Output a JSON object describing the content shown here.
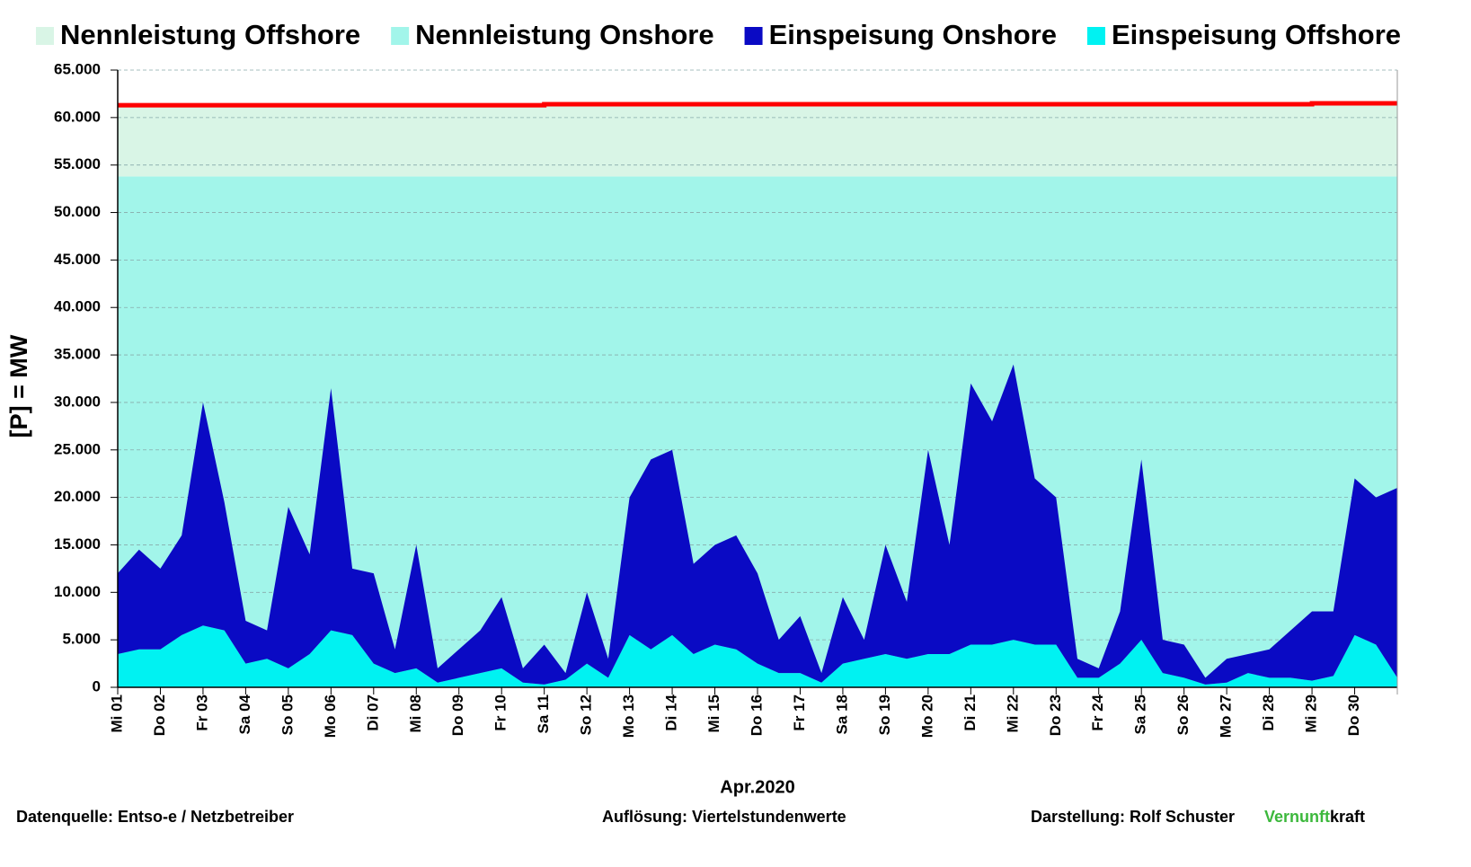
{
  "chart_data": {
    "type": "area",
    "y_label": "[P] = MW",
    "x_label": "Apr.2020",
    "xlim": [
      0,
      30
    ],
    "xticks": [
      {
        "value": 0,
        "label": "Mi 01"
      },
      {
        "value": 1,
        "label": "Do 02"
      },
      {
        "value": 2,
        "label": "Fr 03"
      },
      {
        "value": 3,
        "label": "Sa 04"
      },
      {
        "value": 4,
        "label": "So 05"
      },
      {
        "value": 5,
        "label": "Mo 06"
      },
      {
        "value": 6,
        "label": "Di 07"
      },
      {
        "value": 7,
        "label": "Mi 08"
      },
      {
        "value": 8,
        "label": "Do 09"
      },
      {
        "value": 9,
        "label": "Fr 10"
      },
      {
        "value": 10,
        "label": "Sa 11"
      },
      {
        "value": 11,
        "label": "So 12"
      },
      {
        "value": 12,
        "label": "Mo 13"
      },
      {
        "value": 13,
        "label": "Di 14"
      },
      {
        "value": 14,
        "label": "Mi 15"
      },
      {
        "value": 15,
        "label": "Do 16"
      },
      {
        "value": 16,
        "label": "Fr 17"
      },
      {
        "value": 17,
        "label": "Sa 18"
      },
      {
        "value": 18,
        "label": "So 19"
      },
      {
        "value": 19,
        "label": "Mo 20"
      },
      {
        "value": 20,
        "label": "Di 21"
      },
      {
        "value": 21,
        "label": "Mi 22"
      },
      {
        "value": 22,
        "label": "Do 23"
      },
      {
        "value": 23,
        "label": "Fr 24"
      },
      {
        "value": 24,
        "label": "Sa 25"
      },
      {
        "value": 25,
        "label": "So 26"
      },
      {
        "value": 26,
        "label": "Mo 27"
      },
      {
        "value": 27,
        "label": "Di 28"
      },
      {
        "value": 28,
        "label": "Mi 29"
      },
      {
        "value": 29,
        "label": "Do 30"
      }
    ],
    "ylim": [
      0,
      65000
    ],
    "yticks": [
      {
        "value": 0,
        "label": "0"
      },
      {
        "value": 5000,
        "label": "5.000"
      },
      {
        "value": 10000,
        "label": "10.000"
      },
      {
        "value": 15000,
        "label": "15.000"
      },
      {
        "value": 20000,
        "label": "20.000"
      },
      {
        "value": 25000,
        "label": "25.000"
      },
      {
        "value": 30000,
        "label": "30.000"
      },
      {
        "value": 35000,
        "label": "35.000"
      },
      {
        "value": 40000,
        "label": "40.000"
      },
      {
        "value": 45000,
        "label": "45.000"
      },
      {
        "value": 50000,
        "label": "50.000"
      },
      {
        "value": 55000,
        "label": "55.000"
      },
      {
        "value": 60000,
        "label": "60.000"
      },
      {
        "value": 65000,
        "label": "65.000"
      }
    ],
    "grid": true,
    "legend": "top",
    "x": [
      0,
      0.5,
      1,
      1.5,
      2,
      2.5,
      3,
      3.5,
      4,
      4.5,
      5,
      5.5,
      6,
      6.5,
      7,
      7.5,
      8,
      8.5,
      9,
      9.5,
      10,
      10.5,
      11,
      11.5,
      12,
      12.5,
      13,
      13.5,
      14,
      14.5,
      15,
      15.5,
      16,
      16.5,
      17,
      17.5,
      18,
      18.5,
      19,
      19.5,
      20,
      20.5,
      21,
      21.5,
      22,
      22.5,
      23,
      23.5,
      24,
      24.5,
      25,
      25.5,
      26,
      26.5,
      27,
      27.5,
      28,
      28.5,
      29,
      29.5,
      30
    ],
    "series": [
      {
        "name": "Nennleistung Offshore",
        "color": "#d9f5e6",
        "line_color": "#ff0000",
        "stack": "capacity",
        "x": [
          0,
          10,
          10,
          28,
          28,
          30
        ],
        "values": [
          7500,
          7500,
          7600,
          7600,
          7700,
          7700
        ]
      },
      {
        "name": "Nennleistung Onshore",
        "color": "#a2f5ea",
        "stack": "capacity",
        "x": [
          0,
          10,
          10,
          28,
          28,
          30
        ],
        "values": [
          53800,
          53800,
          53800,
          53800,
          53800,
          53800
        ]
      },
      {
        "name": "Einspeisung Onshore",
        "color": "#0a0ac4",
        "stack": "feed",
        "values": [
          8500,
          10500,
          8500,
          10500,
          23500,
          13500,
          4500,
          3000,
          17000,
          10500,
          25500,
          7000,
          9500,
          2500,
          13000,
          1500,
          3000,
          4500,
          7500,
          1500,
          4200,
          700,
          7500,
          2000,
          14500,
          20000,
          19500,
          9500,
          10500,
          12000,
          9500,
          3500,
          6000,
          1000,
          7000,
          2000,
          11500,
          6000,
          21500,
          11500,
          27500,
          23500,
          29000,
          17500,
          15500,
          2000,
          1000,
          5500,
          19000,
          3500,
          3500,
          700,
          2500,
          2000,
          3000,
          5000,
          7300,
          6800,
          16500,
          15500,
          20000
        ]
      },
      {
        "name": "Einspeisung Offshore",
        "color": "#00f2f2",
        "stack": "feed",
        "values": [
          3500,
          4000,
          4000,
          5500,
          6500,
          6000,
          2500,
          3000,
          2000,
          3500,
          6000,
          5500,
          2500,
          1500,
          2000,
          500,
          1000,
          1500,
          2000,
          500,
          300,
          800,
          2500,
          1000,
          5500,
          4000,
          5500,
          3500,
          4500,
          4000,
          2500,
          1500,
          1500,
          500,
          2500,
          3000,
          3500,
          3000,
          3500,
          3500,
          4500,
          4500,
          5000,
          4500,
          4500,
          1000,
          1000,
          2500,
          5000,
          1500,
          1000,
          300,
          500,
          1500,
          1000,
          1000,
          700,
          1200,
          5500,
          4500,
          1000
        ]
      }
    ]
  },
  "footer": {
    "source": "Datenquelle:  Entso-e  / Netzbetreiber",
    "resolution": "Auflösung: Viertelstundenwerte",
    "author": "Darstellung:  Rolf Schuster",
    "brand_a": "Vernunft",
    "brand_b": "kraft"
  }
}
